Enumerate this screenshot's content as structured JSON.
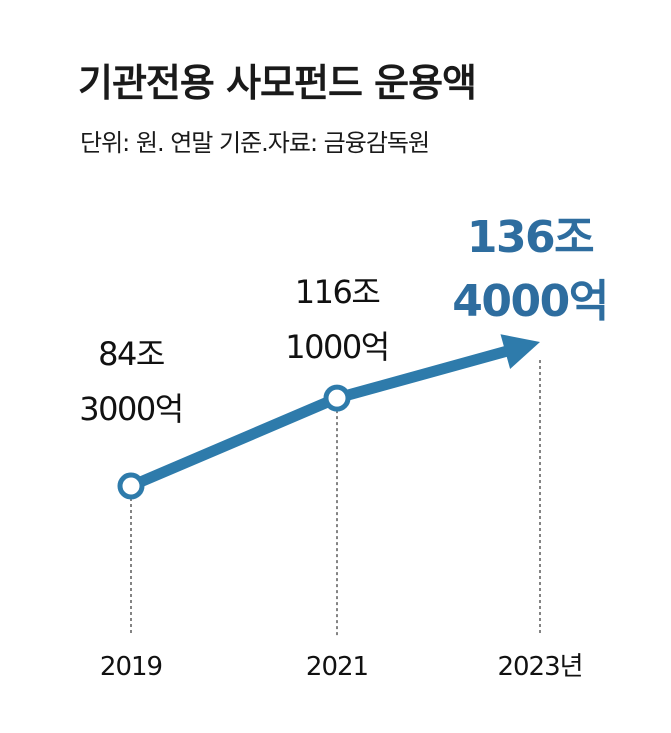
{
  "header": {
    "title": "기관전용 사모펀드 운용액",
    "subtitle": "단위: 원. 연말 기준.자료: 금융감독원"
  },
  "colors": {
    "line": "#2e7bab",
    "accent_label": "#2e6d9f",
    "text": "#111111"
  },
  "chart_data": {
    "type": "line",
    "title": "기관전용 사모펀드 운용액",
    "subtitle": "단위: 원. 연말 기준.자료: 금융감독원",
    "unit": "원",
    "categories": [
      "2019",
      "2021",
      "2023년"
    ],
    "values": [
      84.3,
      116.1,
      136.4
    ],
    "value_unit": "조 원",
    "data_labels": [
      [
        "84조",
        "3000억"
      ],
      [
        "116조",
        "1000억"
      ],
      [
        "136조",
        "4000억"
      ]
    ],
    "ylim": [
      84.3,
      136.4
    ],
    "grid": false,
    "legend": "none"
  }
}
